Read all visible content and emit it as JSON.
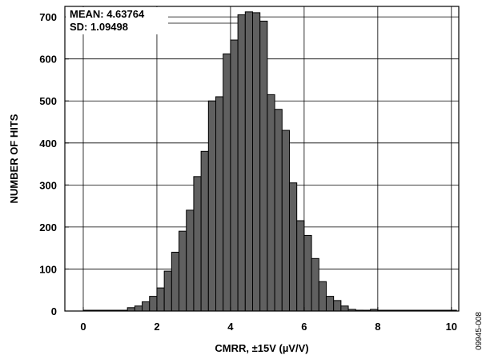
{
  "chart_data": {
    "type": "bar",
    "title": "",
    "xlabel": "CMRR, ±15V (µV/V)",
    "ylabel": "NUMBER OF HITS",
    "xlim": [
      -0.5,
      10.2
    ],
    "ylim": [
      0,
      725
    ],
    "x_ticks": [
      0,
      2,
      4,
      6,
      8,
      10
    ],
    "y_ticks": [
      0,
      100,
      200,
      300,
      400,
      500,
      600,
      700
    ],
    "bin_width": 0.2,
    "grid": true,
    "bar_color": "#606060",
    "annotations": [
      "MEAN: 4.63764",
      "SD: 1.09498"
    ],
    "figure_id": "09945-008",
    "bins": [
      {
        "x": 1.2,
        "y": 8
      },
      {
        "x": 1.4,
        "y": 12
      },
      {
        "x": 1.6,
        "y": 22
      },
      {
        "x": 1.8,
        "y": 35
      },
      {
        "x": 2.0,
        "y": 55
      },
      {
        "x": 2.2,
        "y": 95
      },
      {
        "x": 2.4,
        "y": 140
      },
      {
        "x": 2.6,
        "y": 190
      },
      {
        "x": 2.8,
        "y": 240
      },
      {
        "x": 3.0,
        "y": 320
      },
      {
        "x": 3.2,
        "y": 380
      },
      {
        "x": 3.4,
        "y": 500
      },
      {
        "x": 3.6,
        "y": 510
      },
      {
        "x": 3.8,
        "y": 612
      },
      {
        "x": 4.0,
        "y": 645
      },
      {
        "x": 4.2,
        "y": 705
      },
      {
        "x": 4.4,
        "y": 712
      },
      {
        "x": 4.6,
        "y": 710
      },
      {
        "x": 4.8,
        "y": 690
      },
      {
        "x": 5.0,
        "y": 515
      },
      {
        "x": 5.2,
        "y": 480
      },
      {
        "x": 5.4,
        "y": 430
      },
      {
        "x": 5.6,
        "y": 305
      },
      {
        "x": 5.8,
        "y": 215
      },
      {
        "x": 6.0,
        "y": 180
      },
      {
        "x": 6.2,
        "y": 125
      },
      {
        "x": 6.4,
        "y": 70
      },
      {
        "x": 6.6,
        "y": 35
      },
      {
        "x": 6.8,
        "y": 25
      },
      {
        "x": 7.0,
        "y": 12
      },
      {
        "x": 7.2,
        "y": 4
      },
      {
        "x": 7.4,
        "y": 2
      },
      {
        "x": 7.8,
        "y": 4
      }
    ]
  }
}
